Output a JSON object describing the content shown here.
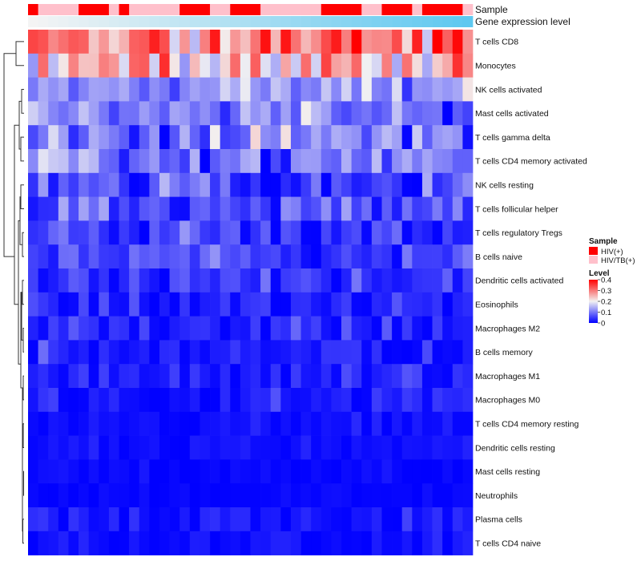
{
  "chart_data": {
    "type": "heatmap",
    "title": "",
    "n_samples": 44,
    "value_range": [
      0,
      0.4
    ],
    "color_stops": [
      {
        "value": 0.0,
        "color": "#0000FF"
      },
      {
        "value": 0.2,
        "color": "#F2F2F2"
      },
      {
        "value": 0.4,
        "color": "#FF0000"
      }
    ],
    "annotations": [
      {
        "name": "Sample",
        "type": "categorical",
        "values": [
          1,
          0,
          0,
          0,
          0,
          1,
          1,
          1,
          0,
          1,
          0,
          0,
          0,
          0,
          0,
          1,
          1,
          1,
          0,
          0,
          1,
          1,
          1,
          0,
          0,
          0,
          0,
          0,
          0,
          1,
          1,
          1,
          1,
          0,
          0,
          1,
          1,
          1,
          0,
          1,
          1,
          1,
          1,
          0
        ]
      },
      {
        "name": "Gene expression level",
        "type": "continuous",
        "gradient": [
          "#F4F4F4",
          "#5EC8F0"
        ]
      }
    ],
    "legend": {
      "position": "right",
      "sample": {
        "title": "Sample",
        "entries": [
          {
            "label": "HIV(+)",
            "color": "#FF0000"
          },
          {
            "label": "HIV/TB(+)",
            "color": "#FFC0CB"
          }
        ]
      },
      "level": {
        "title": "Level",
        "ticks": [
          0,
          0.1,
          0.2,
          0.3,
          0.4
        ],
        "tick_labels": [
          "0",
          "0.1",
          "0.2",
          "0.3",
          "0.4"
        ]
      }
    },
    "rows": [
      {
        "name": "T cells CD8",
        "mean": 0.31,
        "sd": 0.07
      },
      {
        "name": "Monocytes",
        "mean": 0.23,
        "sd": 0.07
      },
      {
        "name": "NK cells activated",
        "mean": 0.13,
        "sd": 0.035
      },
      {
        "name": "Mast cells activated",
        "mean": 0.11,
        "sd": 0.04
      },
      {
        "name": "T cells gamma delta",
        "mean": 0.1,
        "sd": 0.06
      },
      {
        "name": "T cells CD4 memory activated",
        "mean": 0.09,
        "sd": 0.05
      },
      {
        "name": "NK cells resting",
        "mean": 0.06,
        "sd": 0.05
      },
      {
        "name": "T cells follicular helper",
        "mean": 0.07,
        "sd": 0.04
      },
      {
        "name": "T cells regulatory  Tregs",
        "mean": 0.05,
        "sd": 0.035
      },
      {
        "name": "B cells naive",
        "mean": 0.05,
        "sd": 0.03
      },
      {
        "name": "Dendritic cells activated",
        "mean": 0.04,
        "sd": 0.025
      },
      {
        "name": "Eosinophils",
        "mean": 0.03,
        "sd": 0.025
      },
      {
        "name": "Macrophages M2",
        "mean": 0.03,
        "sd": 0.025
      },
      {
        "name": "B cells memory",
        "mean": 0.02,
        "sd": 0.02
      },
      {
        "name": "Macrophages M1",
        "mean": 0.02,
        "sd": 0.02
      },
      {
        "name": "Macrophages M0",
        "mean": 0.02,
        "sd": 0.02
      },
      {
        "name": "T cells CD4 memory resting",
        "mean": 0.01,
        "sd": 0.012
      },
      {
        "name": "Dendritic cells resting",
        "mean": 0.01,
        "sd": 0.012
      },
      {
        "name": "Mast cells resting",
        "mean": 0.005,
        "sd": 0.006
      },
      {
        "name": "Neutrophils",
        "mean": 0.004,
        "sd": 0.005
      },
      {
        "name": "Plasma cells",
        "mean": 0.02,
        "sd": 0.02
      },
      {
        "name": "T cells CD4 naive",
        "mean": 0.01,
        "sd": 0.012
      }
    ]
  }
}
